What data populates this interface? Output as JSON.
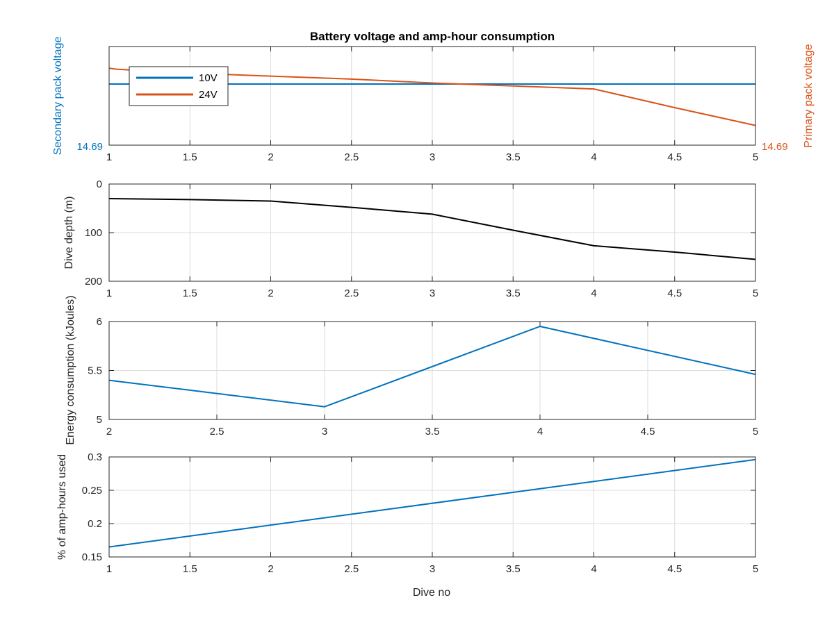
{
  "chart_data": [
    {
      "type": "line",
      "title": "Battery voltage and amp-hour consumption",
      "xlabel": "",
      "ylabel_left": "Secondary pack voltage",
      "ylabel_right": "Primary pack voltage",
      "xlim": [
        1,
        5
      ],
      "x_ticks": [
        "1",
        "1.5",
        "2",
        "2.5",
        "3",
        "3.5",
        "4",
        "4.5",
        "5"
      ],
      "y_tick_left": "14.69",
      "y_tick_right": "14.69",
      "grid": true,
      "legend_position": "top-left",
      "series": [
        {
          "name": "10V",
          "color": "#0072BD",
          "axis": "left",
          "x": [
            1,
            2,
            3,
            4,
            5
          ],
          "y": [
            0.62,
            0.62,
            0.62,
            0.62,
            0.62
          ]
        },
        {
          "name": "24V",
          "color": "#D95319",
          "axis": "right",
          "x": [
            1,
            1.05,
            1.5,
            2,
            2.5,
            3,
            3.5,
            4,
            4.5,
            5
          ],
          "y": [
            0.78,
            0.77,
            0.73,
            0.7,
            0.67,
            0.63,
            0.6,
            0.57,
            0.38,
            0.2
          ]
        }
      ]
    },
    {
      "type": "line",
      "title": "",
      "xlabel": "",
      "ylabel": "Dive depth (m)",
      "xlim": [
        1,
        5
      ],
      "ylim": [
        0,
        200
      ],
      "y_reversed": true,
      "x_ticks": [
        "1",
        "1.5",
        "2",
        "2.5",
        "3",
        "3.5",
        "4",
        "4.5",
        "5"
      ],
      "y_ticks": [
        "0",
        "100",
        "200"
      ],
      "grid": true,
      "series": [
        {
          "color": "#000000",
          "x": [
            1,
            1.5,
            2,
            2.5,
            3,
            3.5,
            4,
            4.5,
            5
          ],
          "y": [
            30,
            32,
            35,
            48,
            62,
            95,
            127,
            140,
            155
          ]
        }
      ]
    },
    {
      "type": "line",
      "title": "",
      "xlabel": "",
      "ylabel": "Energy consumption (kJoules)",
      "xlim": [
        2,
        5
      ],
      "ylim": [
        5,
        6
      ],
      "x_ticks": [
        "2",
        "2.5",
        "3",
        "3.5",
        "4",
        "4.5",
        "5"
      ],
      "y_ticks": [
        "5",
        "5.5",
        "6"
      ],
      "grid": true,
      "series": [
        {
          "color": "#0072BD",
          "x": [
            2,
            3,
            4,
            5
          ],
          "y": [
            5.4,
            5.13,
            5.95,
            5.46
          ]
        }
      ]
    },
    {
      "type": "line",
      "title": "",
      "xlabel": "Dive no",
      "ylabel": "% of amp-hours used",
      "xlim": [
        1,
        5
      ],
      "ylim": [
        0.15,
        0.3
      ],
      "x_ticks": [
        "1",
        "1.5",
        "2",
        "2.5",
        "3",
        "3.5",
        "4",
        "4.5",
        "5"
      ],
      "y_ticks": [
        "0.15",
        "0.2",
        "0.25",
        "0.3"
      ],
      "grid": true,
      "series": [
        {
          "color": "#0072BD",
          "x": [
            1,
            5
          ],
          "y": [
            0.165,
            0.296
          ]
        }
      ]
    }
  ]
}
